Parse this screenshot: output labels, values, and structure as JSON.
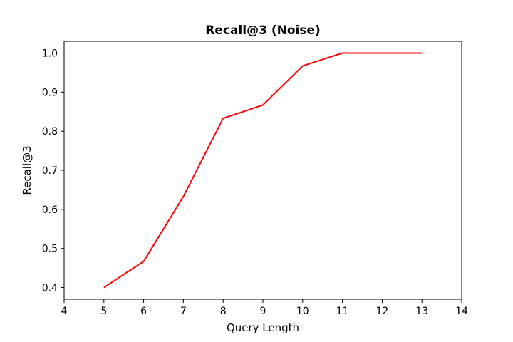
{
  "chart_data": {
    "type": "line",
    "title": "Recall@3 (Noise)",
    "xlabel": "Query Length",
    "ylabel": "Recall@3",
    "xlim": [
      4,
      14
    ],
    "ylim": [
      0.37,
      1.03
    ],
    "x_ticks": [
      4,
      5,
      6,
      7,
      8,
      9,
      10,
      11,
      12,
      13,
      14
    ],
    "y_ticks": [
      0.4,
      0.5,
      0.6,
      0.7,
      0.8,
      0.9,
      1.0
    ],
    "y_tick_labels": [
      "0.4",
      "0.5",
      "0.6",
      "0.7",
      "0.8",
      "0.9",
      "1.0"
    ],
    "grid": false,
    "legend": "none",
    "series": [
      {
        "color": "#ff0000",
        "x": [
          5,
          6,
          7,
          8,
          9,
          10,
          11,
          12,
          13
        ],
        "y": [
          0.4,
          0.467,
          0.633,
          0.833,
          0.867,
          0.967,
          1.0,
          1.0,
          1.0
        ]
      }
    ]
  }
}
